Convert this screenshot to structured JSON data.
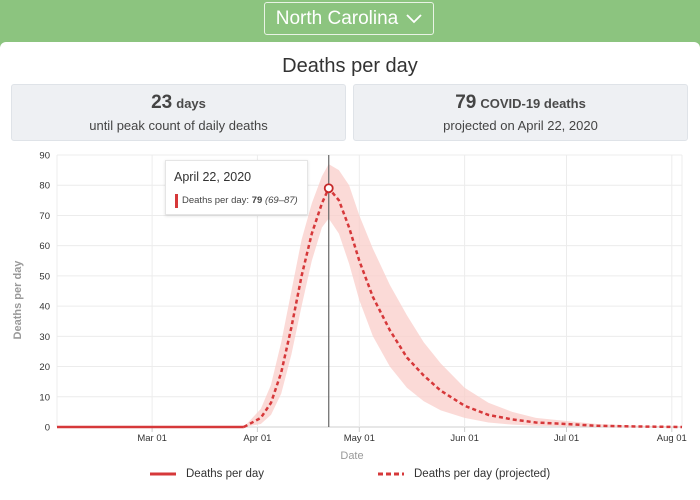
{
  "header": {
    "state": "North Carolina"
  },
  "card": {
    "title": "Deaths per day",
    "peak_days": {
      "number": "23",
      "unit": "days",
      "caption": "until peak count of daily deaths"
    },
    "peak_deaths": {
      "number": "79",
      "unit": "COVID-19 deaths",
      "caption": "projected on April 22, 2020"
    }
  },
  "tooltip": {
    "date": "April 22, 2020",
    "label": "Deaths per day:",
    "value": "79",
    "range": "(69–87)"
  },
  "chart_data": {
    "type": "line",
    "title": "",
    "xlabel": "Date",
    "ylabel": "Deaths per day",
    "ylim": [
      0,
      90
    ],
    "yticks": [
      0,
      10,
      20,
      30,
      40,
      50,
      60,
      70,
      80,
      90
    ],
    "xticks": [
      "Mar 01",
      "Apr 01",
      "May 01",
      "Jun 01",
      "Jul 01",
      "Aug 01"
    ],
    "xlim": [
      "2020-02-02",
      "2020-08-04"
    ],
    "grid": true,
    "legend_position": "bottom",
    "colors": {
      "line": "#d6383a",
      "band": "#f9cdca",
      "marker": "#c62828"
    },
    "series": [
      {
        "name": "Deaths per day",
        "style": "solid",
        "x": [
          "2020-02-02",
          "2020-03-28"
        ],
        "values": [
          0,
          0
        ]
      },
      {
        "name": "Deaths per day (projected)",
        "style": "dashed",
        "x": [
          "2020-03-28",
          "2020-04-02",
          "2020-04-05",
          "2020-04-08",
          "2020-04-11",
          "2020-04-14",
          "2020-04-17",
          "2020-04-20",
          "2020-04-22",
          "2020-04-25",
          "2020-04-28",
          "2020-05-01",
          "2020-05-05",
          "2020-05-10",
          "2020-05-15",
          "2020-05-20",
          "2020-05-25",
          "2020-06-01",
          "2020-06-08",
          "2020-06-15",
          "2020-06-22",
          "2020-07-01",
          "2020-07-10",
          "2020-07-20",
          "2020-08-04"
        ],
        "values": [
          0,
          3,
          8,
          18,
          33,
          50,
          64,
          74,
          79,
          75,
          66,
          55,
          43,
          32,
          23,
          17,
          12,
          7,
          4,
          2.5,
          1.5,
          1,
          0.4,
          0.2,
          0
        ],
        "lower": [
          0,
          1,
          4,
          11,
          24,
          40,
          55,
          66,
          69,
          64,
          54,
          42,
          30,
          20,
          13,
          8.5,
          5.5,
          3,
          1.5,
          0.8,
          0.4,
          0.2,
          0.1,
          0,
          0
        ],
        "upper": [
          0,
          6,
          14,
          28,
          45,
          62,
          74,
          83,
          87,
          85,
          80,
          70,
          59,
          47,
          37,
          28,
          21,
          13,
          8,
          5,
          3,
          2,
          1,
          0.5,
          0.2
        ]
      }
    ],
    "highlight": {
      "date": "2020-04-22",
      "value": 79
    }
  }
}
